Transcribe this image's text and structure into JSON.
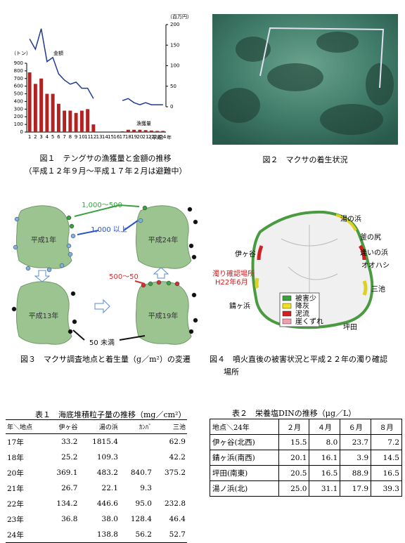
{
  "chart_data": {
    "type": "bar",
    "categories": [
      "1",
      "2",
      "3",
      "4",
      "5",
      "6",
      "7",
      "8",
      "9",
      "10",
      "11",
      "12",
      "13",
      "14",
      "15",
      "16",
      "17",
      "18",
      "19",
      "20",
      "21",
      "22",
      "23",
      "24"
    ],
    "xlabel": "（平成）年",
    "ylabel": "（トン）",
    "y2label": "（百万円）",
    "ylim": [
      0,
      900
    ],
    "yticks": [
      0,
      100,
      200,
      300,
      400,
      500,
      600,
      700,
      800,
      900
    ],
    "y2lim": [
      0,
      200
    ],
    "y2ticks": [
      0,
      50,
      100,
      150,
      200
    ],
    "series": [
      {
        "name": "漁獲量",
        "type": "bar",
        "color": "#b22222",
        "values": [
          780,
          630,
          700,
          500,
          500,
          370,
          280,
          280,
          250,
          280,
          300,
          100,
          null,
          null,
          null,
          null,
          10,
          30,
          30,
          30,
          25,
          20,
          15,
          15
        ]
      },
      {
        "name": "金額",
        "type": "line",
        "axis": "y2",
        "color": "#1f3a93",
        "values": [
          165,
          140,
          190,
          110,
          120,
          80,
          65,
          55,
          60,
          45,
          45,
          20,
          null,
          null,
          null,
          null,
          15,
          20,
          10,
          5,
          10,
          5,
          5,
          5
        ]
      }
    ]
  },
  "figure1": {
    "caption": "図１　テングサの漁獲量と金額の推移",
    "note": "（平成１２年９月～平成１７年２月は避難中）"
  },
  "figure2": {
    "caption": "図２　マクサの着生状況"
  },
  "figure3": {
    "caption": "図３　マクサ調査地点と着生量（g／m²）の変遷",
    "islands": [
      "平成1年",
      "平成24年",
      "平成13年",
      "平成19年"
    ],
    "legend": [
      "1,000～500",
      "1,000 以上",
      "500～50",
      "50 未満"
    ]
  },
  "figure4": {
    "caption": "図４　噴火直後の被害状況と平成２２年の濁り確認",
    "caption_cont": "場所",
    "places": [
      "湯の浜",
      "釜の尻",
      "逢いの浜",
      "オオハシ",
      "三池",
      "坪田",
      "錆ヶ浜",
      "伊ヶ谷"
    ],
    "turbidity": [
      "濁り確認場所",
      "H22年6月"
    ],
    "legend": [
      "被害少",
      "降灰",
      "泥流",
      "崖くずれ"
    ]
  },
  "table1": {
    "title": "表１　海底堆積粒子量の推移（mg／cm²）",
    "header": [
      "年＼地点",
      "伊ヶ谷",
      "湯の浜",
      "ｶﾝﾊﾞ",
      "三池"
    ],
    "rows": [
      [
        "17年",
        "33.2",
        "1815.4",
        null,
        "62.9"
      ],
      [
        "18年",
        "25.2",
        "109.3",
        null,
        "42.2"
      ],
      [
        "20年",
        "369.1",
        "483.2",
        "840.7",
        "375.2"
      ],
      [
        "21年",
        "26.7",
        "22.1",
        "9.3",
        null
      ],
      [
        "22年",
        "134.2",
        "446.6",
        "95.0",
        "232.8"
      ],
      [
        "23年",
        "36.8",
        "38.0",
        "128.4",
        "46.4"
      ],
      [
        "24年",
        null,
        "138.8",
        "56.2",
        "52.7"
      ]
    ]
  },
  "table2": {
    "title": "表２　栄養塩DINの推移（μg／L）",
    "header": [
      "地点＼24年",
      "２月",
      "４月",
      "６月",
      "８月"
    ],
    "rows": [
      [
        "伊ヶ谷(北西)",
        "15.5",
        "8.0",
        "23.7",
        "7.2"
      ],
      [
        "錆ヶ浜(南西)",
        "20.1",
        "16.1",
        "3.9",
        "14.5"
      ],
      [
        "坪田(南東)",
        "20.5",
        "16.5",
        "88.9",
        "16.5"
      ],
      [
        "湯ノ浜(北)",
        "25.0",
        "31.1",
        "17.9",
        "39.3"
      ]
    ]
  }
}
